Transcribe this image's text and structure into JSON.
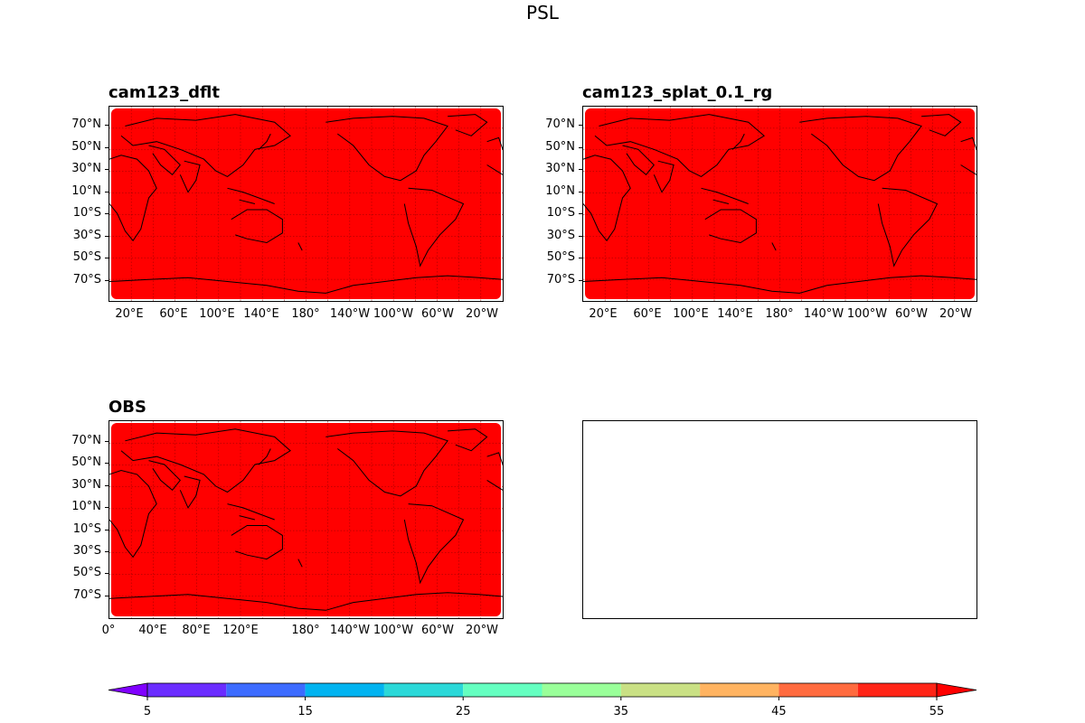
{
  "figure": {
    "title": "PSL"
  },
  "panels": [
    {
      "id": "p1",
      "title": "cam123_dflt",
      "lat_ticks": [
        "70°N",
        "50°N",
        "30°N",
        "10°N",
        "10°S",
        "30°S",
        "50°S",
        "70°S"
      ],
      "lon_ticks": [
        "20°E",
        "60°E",
        "100°E",
        "140°E",
        "180°",
        "140°W",
        "100°W",
        "60°W",
        "20°W"
      ]
    },
    {
      "id": "p2",
      "title": "cam123_splat_0.1_rg",
      "lat_ticks": [
        "70°N",
        "50°N",
        "30°N",
        "10°N",
        "10°S",
        "30°S",
        "50°S",
        "70°S"
      ],
      "lon_ticks": [
        "20°E",
        "60°E",
        "100°E",
        "140°E",
        "180°",
        "140°W",
        "100°W",
        "60°W",
        "20°W"
      ]
    },
    {
      "id": "p3",
      "title": "OBS",
      "lat_ticks": [
        "70°N",
        "50°N",
        "30°N",
        "10°N",
        "10°S",
        "30°S",
        "50°S",
        "70°S"
      ],
      "lon_ticks": [
        "0°",
        "40°E",
        "80°E",
        "120°E",
        "180°",
        "140°W",
        "100°W",
        "60°W",
        "20°W"
      ]
    },
    {
      "id": "p4",
      "title": "",
      "empty": true
    }
  ],
  "map_style": {
    "fill_color": "#ff0000",
    "coast_color": "#000000",
    "grid_color": "#8b0000"
  },
  "colorbar": {
    "levels": [
      5,
      10,
      15,
      20,
      25,
      30,
      35,
      40,
      45,
      50,
      55
    ],
    "tick_labels": [
      "5",
      "15",
      "25",
      "35",
      "45",
      "55"
    ],
    "colors": [
      "#7f00ff",
      "#6a2cff",
      "#3c6bff",
      "#00b3f0",
      "#2ad8d8",
      "#64ffc0",
      "#99ff99",
      "#c9e084",
      "#ffb360",
      "#ff6a3e",
      "#ff2416"
    ],
    "under_color": "#8000ff",
    "over_color": "#ff0000",
    "extend": "both"
  }
}
